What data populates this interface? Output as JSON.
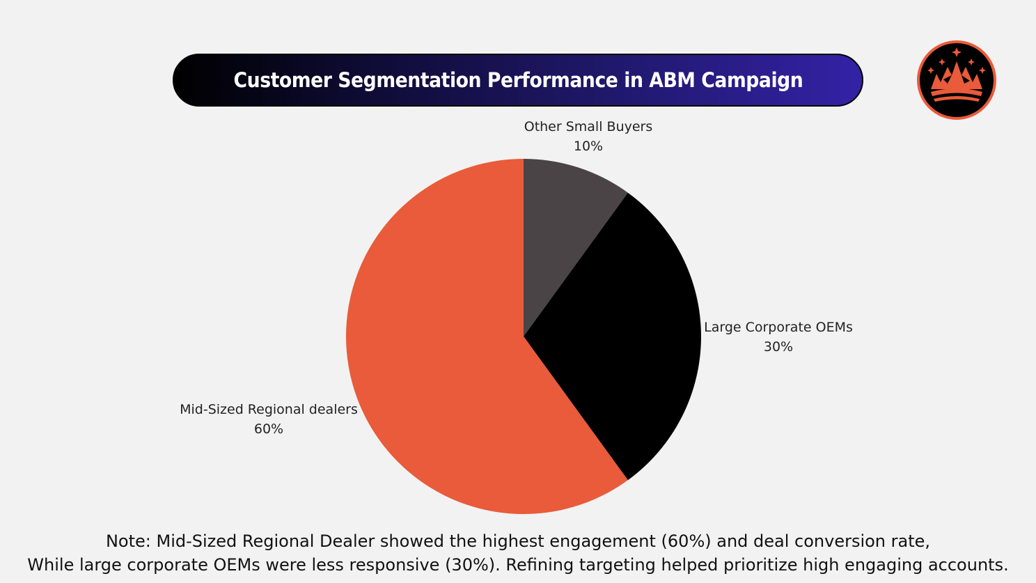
{
  "header": {
    "title": "Customer Segmentation Performance in ABM Campaign",
    "logo_icon": "crown-mountain-logo"
  },
  "chart_data": {
    "type": "pie",
    "title": "Customer Segmentation Performance in ABM Campaign",
    "start": "top",
    "direction": "clockwise",
    "slices": [
      {
        "label": "Other Small Buyers",
        "value": 10,
        "value_label": "10%",
        "color": "#4a4446"
      },
      {
        "label": "Large Corporate OEMs",
        "value": 30,
        "value_label": "30%",
        "color": "#000000"
      },
      {
        "label": "Mid-Sized Regional dealers",
        "value": 60,
        "value_label": "60%",
        "color": "#e95b3a"
      }
    ]
  },
  "note": {
    "line1": "Note: Mid-Sized Regional Dealer showed the highest engagement (60%) and deal conversion rate,",
    "line2": "While large corporate OEMs were less responsive (30%). Refining targeting helped prioritize high engaging accounts."
  },
  "colors": {
    "accent": "#e95b3a",
    "title_gradient_start": "#000000",
    "title_gradient_end": "#3322a6",
    "background": "#f2f2f2"
  }
}
